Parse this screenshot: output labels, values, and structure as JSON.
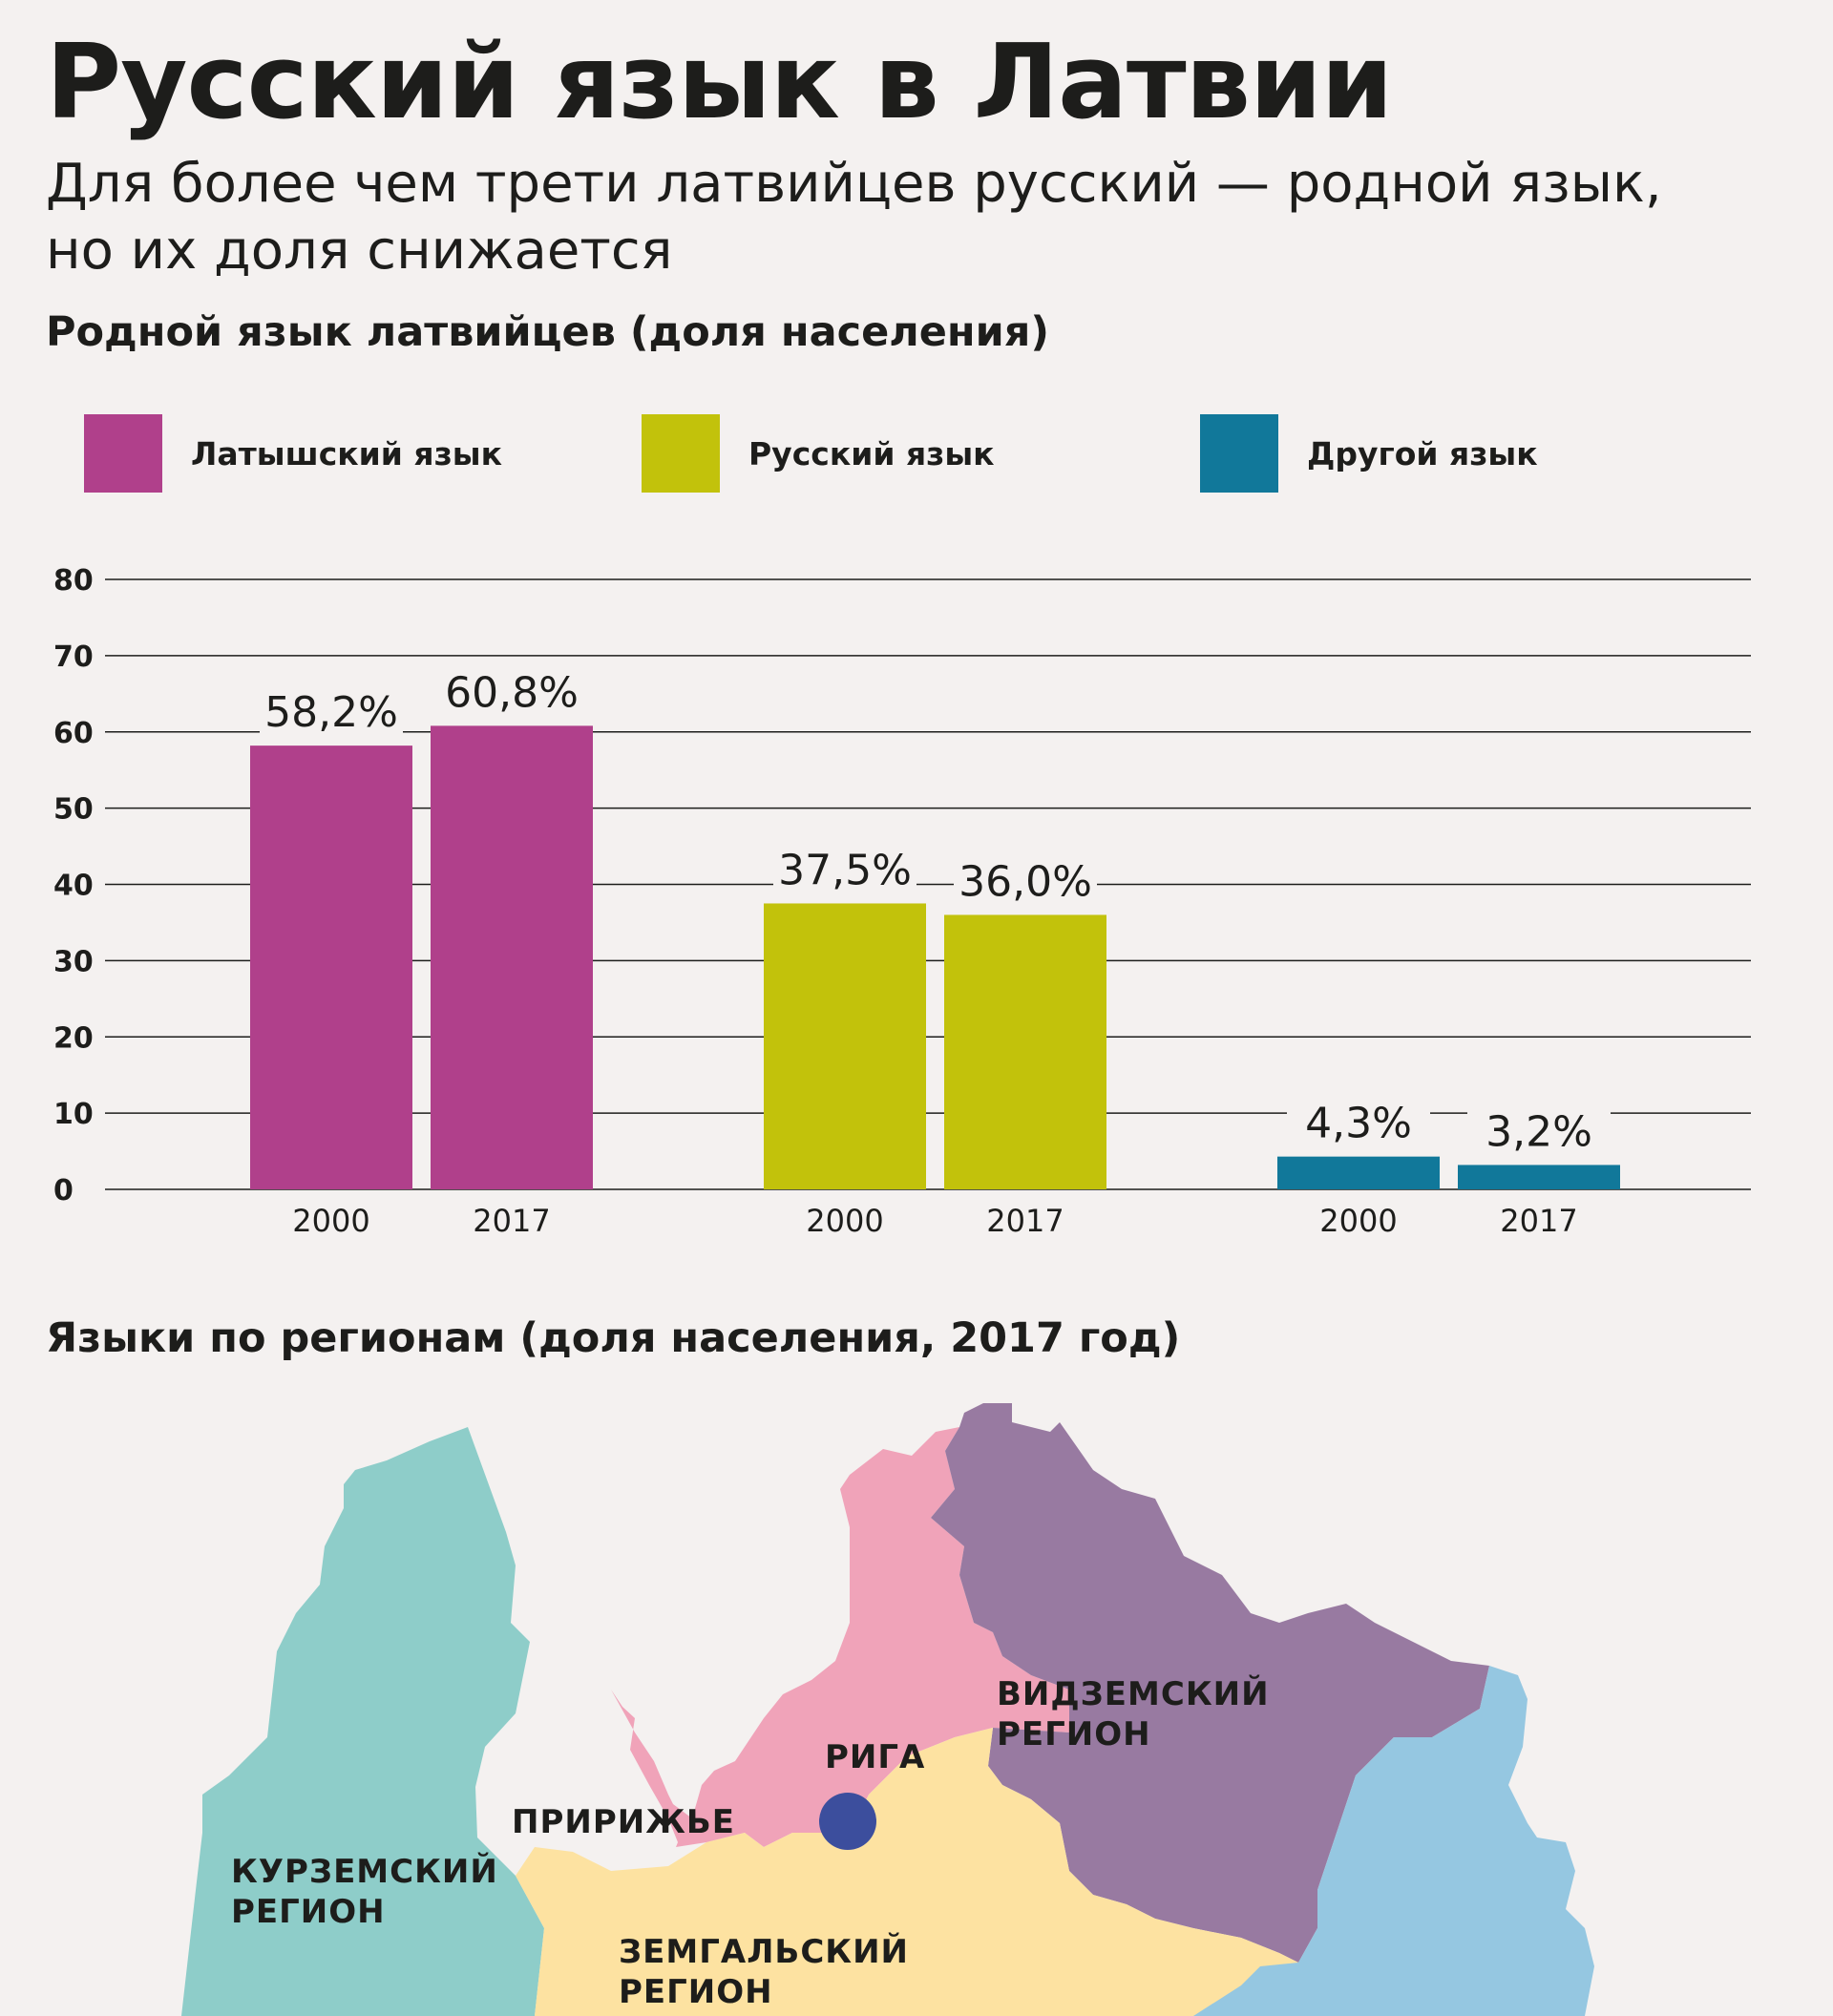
{
  "header": {
    "title": "Русский язык в Латвии",
    "subtitle": "Для более чем трети латвийцев русский — родной язык, но их доля снижается"
  },
  "section_chart_title": "Родной язык латвийцев (доля населения)",
  "section_map_title": "Языки по регионам (доля населения, 2017 год)",
  "legend": [
    {
      "label": "Латышский язык",
      "color": "#b0408b"
    },
    {
      "label": "Русский язык",
      "color": "#c2c20b"
    },
    {
      "label": "Другой язык",
      "color": "#11789a"
    }
  ],
  "chart_data": {
    "type": "bar",
    "title": "Родной язык латвийцев (доля населения)",
    "categories": [
      "2000",
      "2017"
    ],
    "series": [
      {
        "name": "Латышский язык",
        "values": [
          58.2,
          60.8
        ],
        "labels": [
          "58,2%",
          "60,8%"
        ],
        "color": "#b0408b"
      },
      {
        "name": "Русский язык",
        "values": [
          37.5,
          36.0
        ],
        "labels": [
          "37,5%",
          "36,0%"
        ],
        "color": "#c2c20b"
      },
      {
        "name": "Другой язык",
        "values": [
          4.3,
          3.2
        ],
        "labels": [
          "4,3%",
          "3,2%"
        ],
        "color": "#11789a"
      }
    ],
    "xlabel": "",
    "ylabel": "",
    "ylim": [
      0,
      80
    ],
    "yticks": [
      0,
      10,
      20,
      30,
      40,
      50,
      60,
      70,
      80
    ],
    "grid": true,
    "legend_position": "top"
  },
  "map": {
    "regions": [
      {
        "id": "kurzeme",
        "lines": [
          "КУРЗЕМСКИЙ",
          "РЕГИОН"
        ],
        "color": "#8ecdc9"
      },
      {
        "id": "pieriga",
        "lines": [
          "ПРИРИЖЬЕ"
        ],
        "color": "#f0a3b9"
      },
      {
        "id": "vidzeme",
        "lines": [
          "ВИДЗЕМСКИЙ",
          "РЕГИОН"
        ],
        "color": "#987aa1"
      },
      {
        "id": "zemgale",
        "lines": [
          "ЗЕМГАЛЬСКИЙ",
          "РЕГИОН"
        ],
        "color": "#fde2a1"
      },
      {
        "id": "latgale",
        "lines": [],
        "color": "#95c7e1"
      }
    ],
    "city": {
      "label": "РИГА",
      "color": "#3c4e9d"
    }
  }
}
